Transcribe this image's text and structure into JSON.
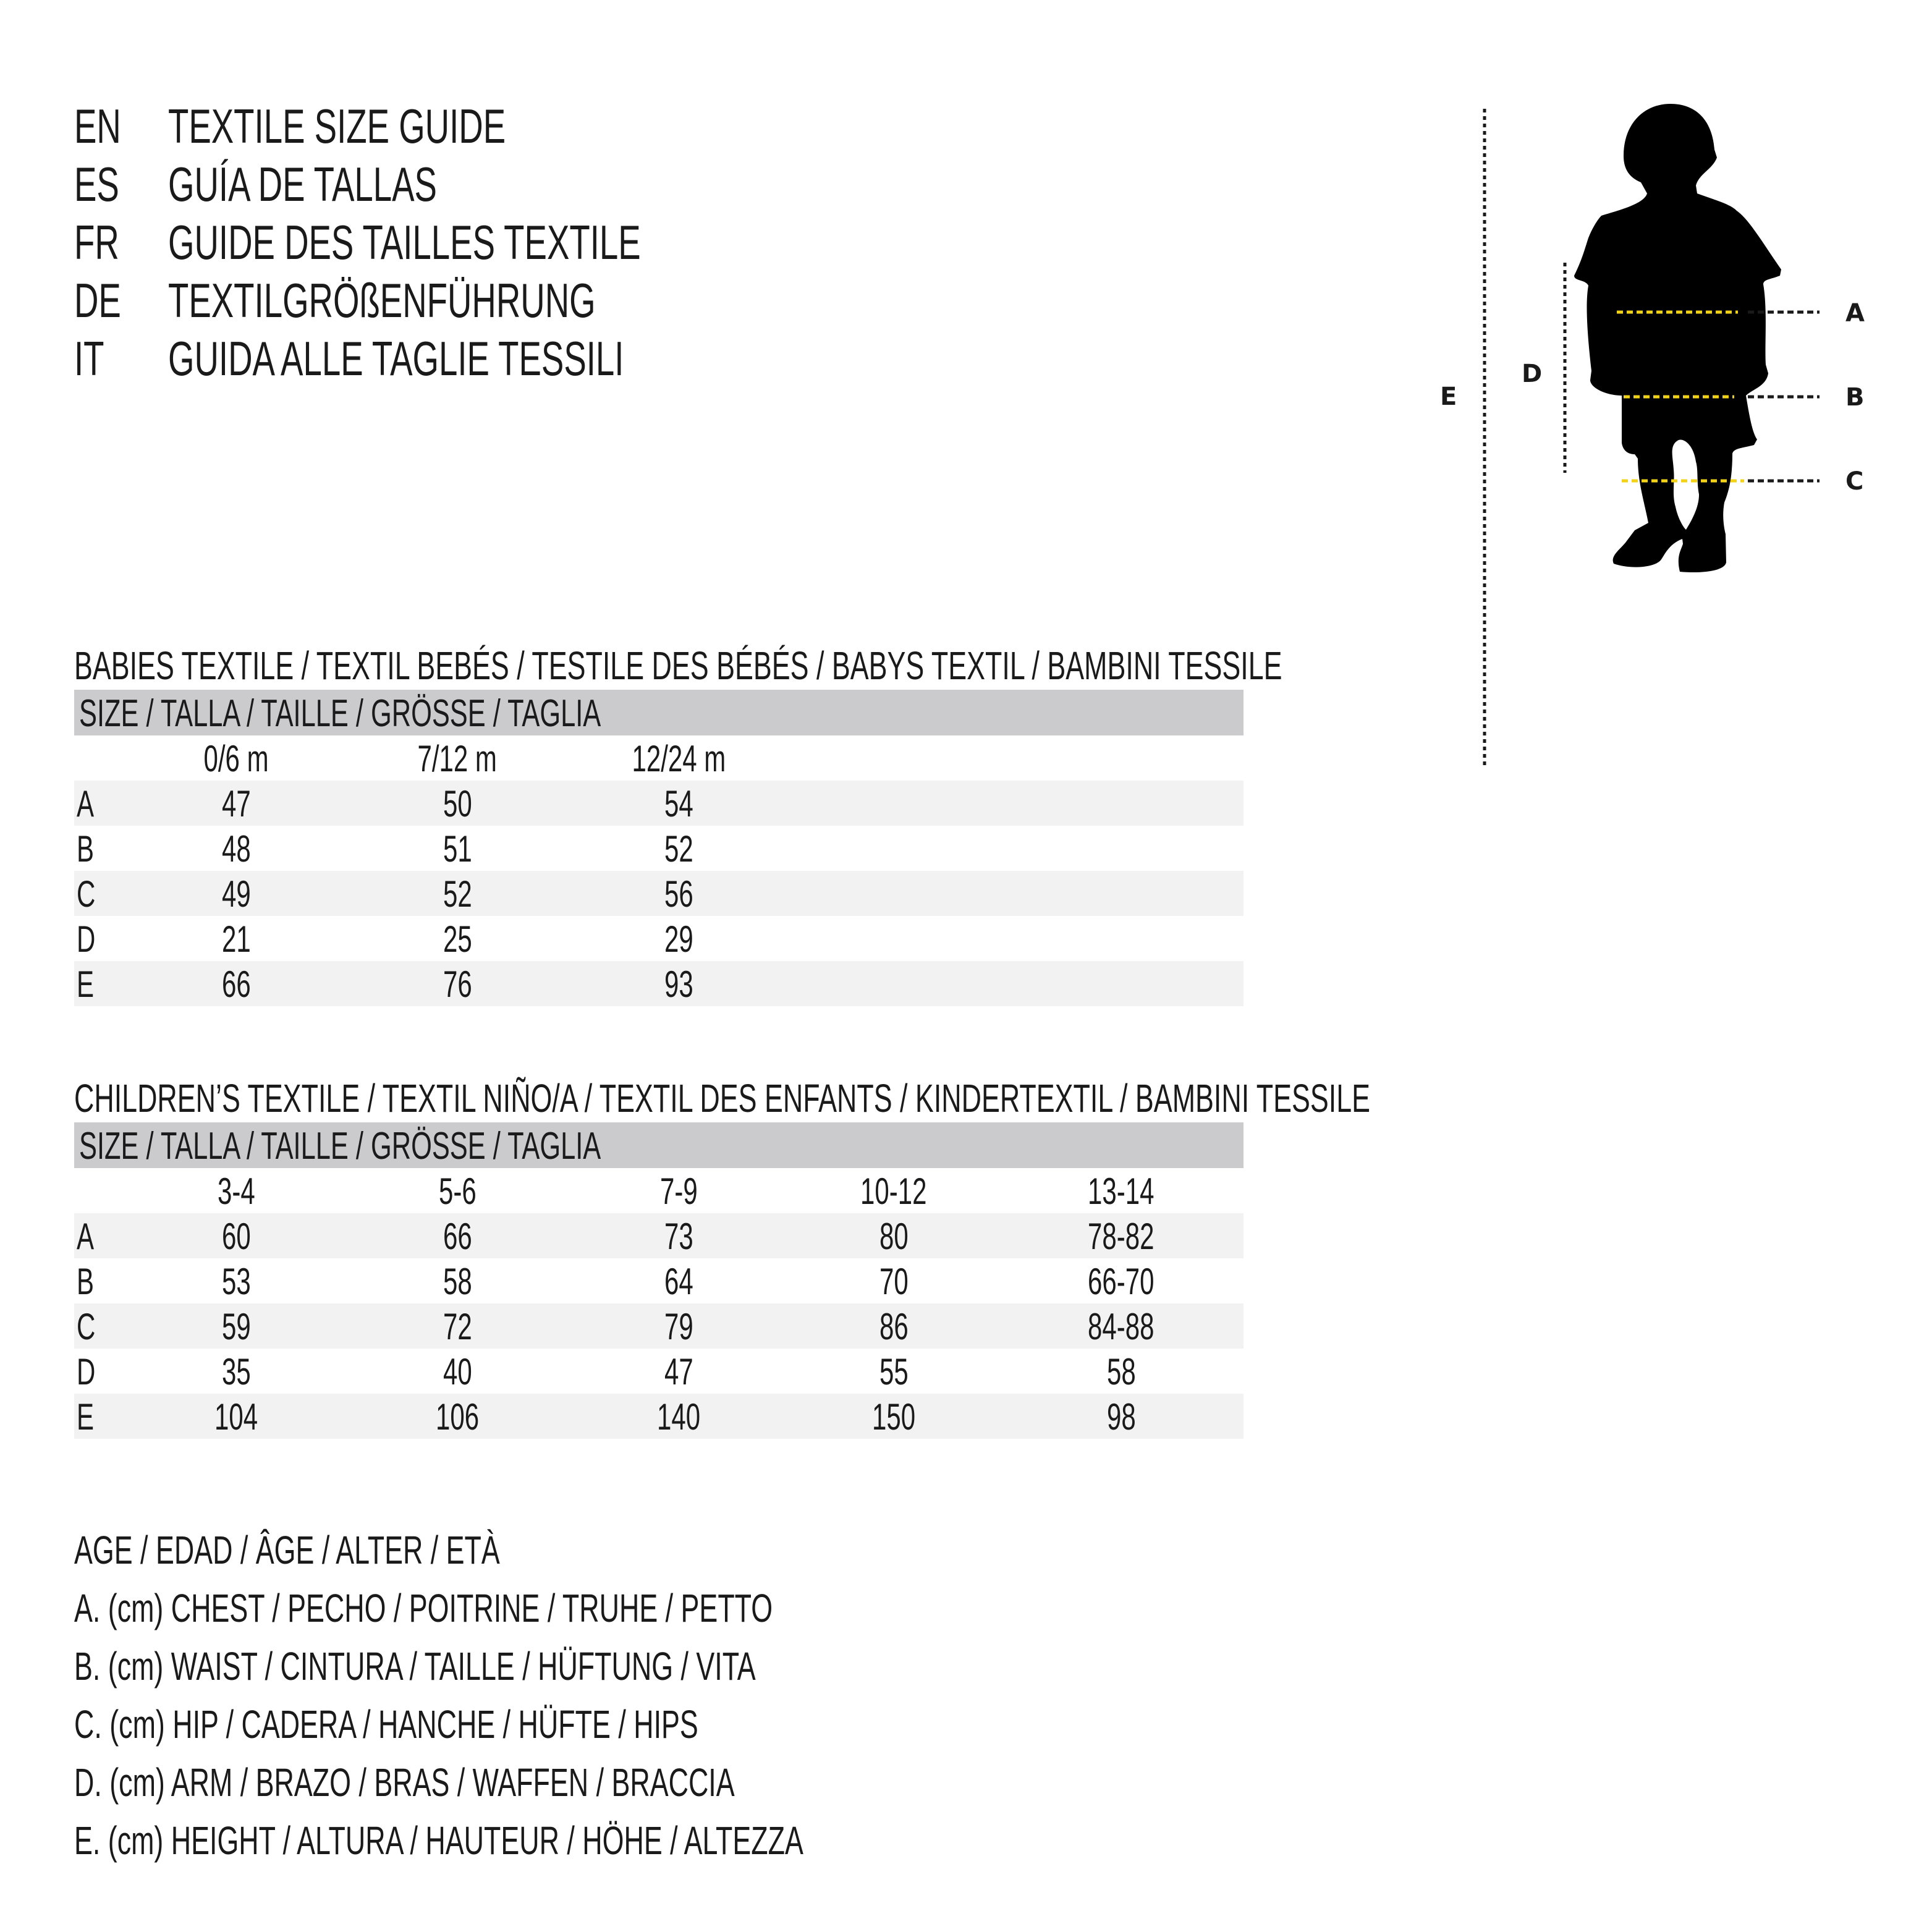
{
  "titles": [
    {
      "code": "EN",
      "text": "TEXTILE SIZE GUIDE"
    },
    {
      "code": "ES",
      "text": "GUÍA DE TALLAS"
    },
    {
      "code": "FR",
      "text": "GUIDE DES TAILLES TEXTILE"
    },
    {
      "code": "DE",
      "text": "TEXTILGRÖßENFÜHRUNG"
    },
    {
      "code": "IT",
      "text": "GUIDA ALLE TAGLIE TESSILI"
    }
  ],
  "diagram": {
    "labels": {
      "A": "A",
      "B": "B",
      "C": "C",
      "D": "D",
      "E": "E"
    },
    "colors": {
      "silhouette": "#000000",
      "measure_line": "#f2d31a",
      "guide_line": "#1a1a1a"
    }
  },
  "babies": {
    "heading": "BABIES TEXTILE / TEXTIL BEBÉS / TESTILE DES BÉBÉS / BABYS TEXTIL / BAMBINI TESSILE",
    "size_header": "SIZE / TALLA / TAILLE / GRÖSSE / TAGLIA",
    "columns": [
      "0/6 m",
      "7/12 m",
      "12/24 m"
    ],
    "rows": [
      {
        "label": "A",
        "values": [
          "47",
          "50",
          "54"
        ]
      },
      {
        "label": "B",
        "values": [
          "48",
          "51",
          "52"
        ]
      },
      {
        "label": "C",
        "values": [
          "49",
          "52",
          "56"
        ]
      },
      {
        "label": "D",
        "values": [
          "21",
          "25",
          "29"
        ]
      },
      {
        "label": "E",
        "values": [
          "66",
          "76",
          "93"
        ]
      }
    ]
  },
  "children": {
    "heading": "CHILDREN’S TEXTILE / TEXTIL NIÑO/A / TEXTIL DES ENFANTS / KINDERTEXTIL / BAMBINI TESSILE",
    "size_header": "SIZE / TALLA / TAILLE / GRÖSSE / TAGLIA",
    "columns": [
      "3-4",
      "5-6",
      "7-9",
      "10-12",
      "13-14"
    ],
    "rows": [
      {
        "label": "A",
        "values": [
          "60",
          "66",
          "73",
          "80",
          "78-82"
        ]
      },
      {
        "label": "B",
        "values": [
          "53",
          "58",
          "64",
          "70",
          "66-70"
        ]
      },
      {
        "label": "C",
        "values": [
          "59",
          "72",
          "79",
          "86",
          "84-88"
        ]
      },
      {
        "label": "D",
        "values": [
          "35",
          "40",
          "47",
          "55",
          "58"
        ]
      },
      {
        "label": "E",
        "values": [
          "104",
          "106",
          "140",
          "150",
          "98"
        ]
      }
    ]
  },
  "legend": [
    "AGE / EDAD / ÂGE / ALTER / ETÀ",
    "A. (cm) CHEST / PECHO / POITRINE / TRUHE / PETTO",
    "B. (cm) WAIST / CINTURA / TAILLE / HÜFTUNG / VITA",
    "C. (cm) HIP / CADERA / HANCHE / HÜFTE / HIPS",
    "D. (cm) ARM / BRAZO / BRAS / WAFFEN / BRACCIA",
    "E. (cm) HEIGHT / ALTURA / HAUTEUR / HÖHE / ALTEZZA"
  ]
}
